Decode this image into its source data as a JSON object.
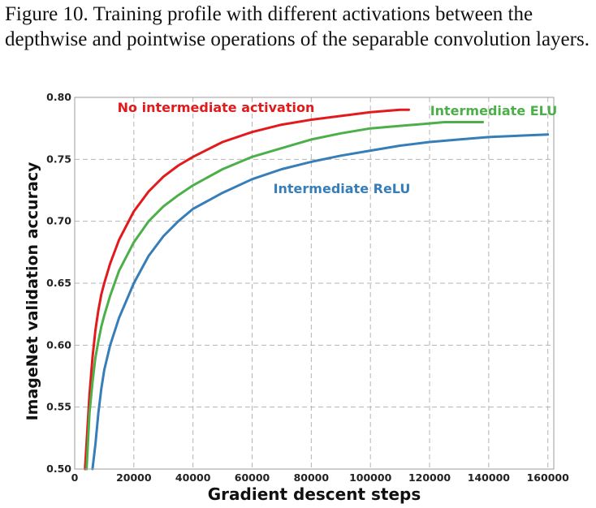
{
  "caption": "Figure 10. Training profile with different activations between the depthwise and pointwise operations of the separable convolution layers.",
  "chart_data": {
    "type": "line",
    "title": "",
    "xlabel": "Gradient descent steps",
    "ylabel": "ImageNet validation accuracy",
    "xlim": [
      0,
      162000
    ],
    "ylim": [
      0.5,
      0.8
    ],
    "xticks": [
      0,
      20000,
      40000,
      60000,
      80000,
      100000,
      120000,
      140000,
      160000
    ],
    "xtick_labels": [
      "0",
      "20000",
      "40000",
      "60000",
      "80000",
      "100000",
      "120000",
      "140000",
      "160000"
    ],
    "yticks": [
      0.5,
      0.55,
      0.6,
      0.65,
      0.7,
      0.75,
      0.8
    ],
    "ytick_labels": [
      "0.50",
      "0.55",
      "0.60",
      "0.65",
      "0.70",
      "0.75",
      "0.80"
    ],
    "grid": true,
    "series": [
      {
        "name": "No intermediate activation",
        "color": "#e31a1c",
        "x": [
          3500,
          5000,
          6000,
          7000,
          8000,
          9000,
          10000,
          12000,
          15000,
          20000,
          25000,
          30000,
          35000,
          40000,
          50000,
          60000,
          70000,
          80000,
          90000,
          100000,
          110000,
          113000
        ],
        "y": [
          0.5,
          0.56,
          0.59,
          0.612,
          0.628,
          0.641,
          0.65,
          0.666,
          0.685,
          0.708,
          0.724,
          0.736,
          0.745,
          0.752,
          0.764,
          0.772,
          0.778,
          0.782,
          0.785,
          0.788,
          0.79,
          0.79
        ]
      },
      {
        "name": "Intermediate ELU",
        "color": "#4daf4a",
        "x": [
          4000,
          5000,
          6000,
          7000,
          8000,
          9000,
          10000,
          12000,
          15000,
          20000,
          25000,
          30000,
          35000,
          40000,
          50000,
          60000,
          70000,
          80000,
          90000,
          100000,
          110000,
          120000,
          125000,
          130000,
          138000
        ],
        "y": [
          0.5,
          0.545,
          0.57,
          0.59,
          0.603,
          0.615,
          0.624,
          0.64,
          0.66,
          0.683,
          0.7,
          0.712,
          0.721,
          0.729,
          0.742,
          0.752,
          0.759,
          0.766,
          0.771,
          0.775,
          0.777,
          0.779,
          0.78,
          0.78,
          0.78
        ]
      },
      {
        "name": "Intermediate ReLU",
        "color": "#377eb8",
        "x": [
          6000,
          7000,
          8000,
          9000,
          10000,
          12000,
          15000,
          20000,
          25000,
          30000,
          35000,
          40000,
          50000,
          60000,
          70000,
          80000,
          90000,
          100000,
          110000,
          120000,
          130000,
          140000,
          150000,
          160000
        ],
        "y": [
          0.5,
          0.52,
          0.545,
          0.565,
          0.58,
          0.6,
          0.622,
          0.65,
          0.672,
          0.688,
          0.7,
          0.71,
          0.723,
          0.734,
          0.742,
          0.748,
          0.753,
          0.757,
          0.761,
          0.764,
          0.766,
          0.768,
          0.769,
          0.77
        ]
      }
    ]
  }
}
